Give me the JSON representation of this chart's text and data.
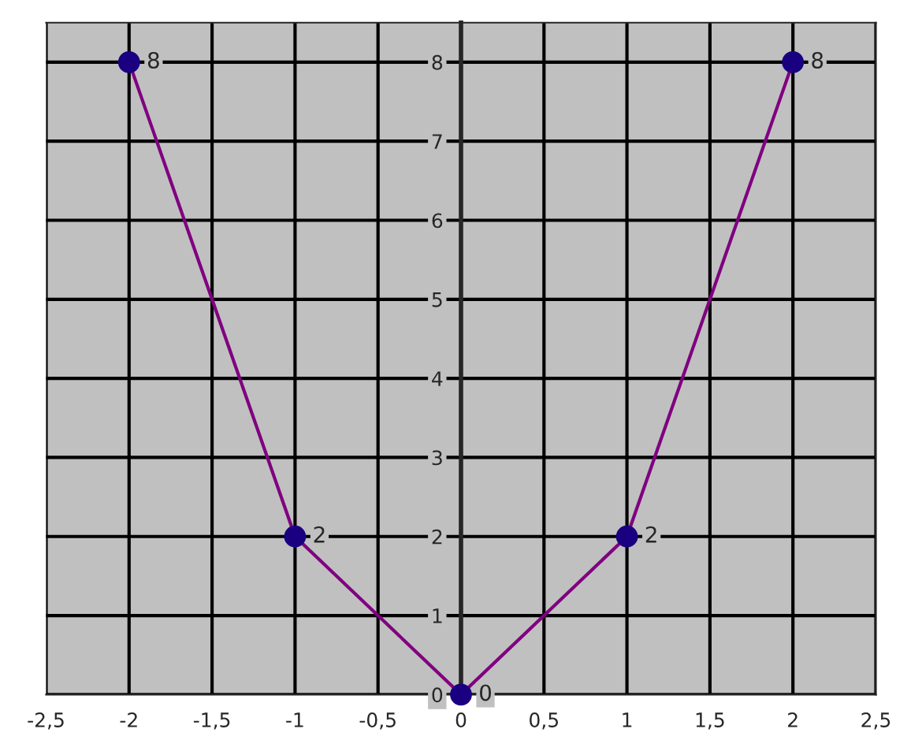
{
  "chart_data": {
    "type": "line",
    "x": [
      -2,
      -1,
      0,
      1,
      2
    ],
    "series": [
      {
        "color": "#800080",
        "values": [
          8,
          2,
          0,
          2,
          8
        ]
      }
    ],
    "marker": "circle",
    "data_labels": true,
    "grid": true,
    "xlim": [
      -2.5,
      2.5
    ],
    "xticks": [
      {
        "value": -2.5,
        "label": "-2,5"
      },
      -2,
      {
        "value": -1.5,
        "label": "-1,5"
      },
      -1,
      {
        "value": -0.5,
        "label": "-0,5"
      },
      0,
      {
        "value": 0.5,
        "label": "0,5"
      },
      1,
      {
        "value": 1.5,
        "label": "1,5"
      },
      2,
      {
        "value": 2.5,
        "label": "2,5"
      }
    ],
    "ylim": [
      0,
      8.5
    ],
    "yticks": [
      0,
      1,
      2,
      3,
      4,
      5,
      6,
      7,
      8
    ]
  }
}
